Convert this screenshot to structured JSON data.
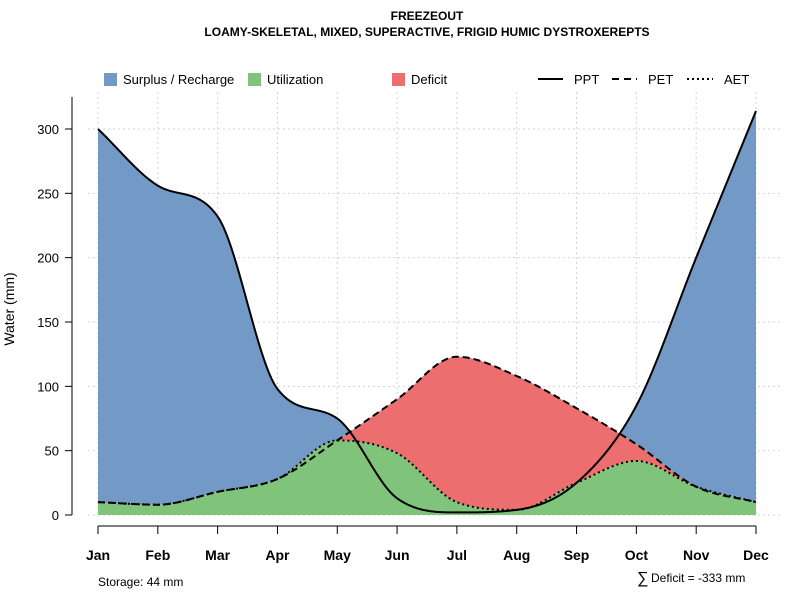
{
  "title": "FREEZEOUT",
  "subtitle": "LOAMY-SKELETAL, MIXED, SUPERACTIVE, FRIGID HUMIC DYSTROXEREPTS",
  "colors": {
    "surplus": "#7399C6",
    "utilization": "#80C47C",
    "deficit": "#EC6E6E",
    "grid": "#d3d3d3",
    "line": "#000000"
  },
  "legend": {
    "surplus": "Surplus / Recharge",
    "utilization": "Utilization",
    "deficit": "Deficit",
    "ppt": "PPT",
    "pet": "PET",
    "aet": "AET"
  },
  "footer": {
    "storage": "Storage: 44 mm",
    "deficit_symbol": "∑",
    "deficit": "Deficit = -333 mm"
  },
  "chart_data": {
    "type": "area",
    "title": "FREEZEOUT",
    "subtitle": "LOAMY-SKELETAL, MIXED, SUPERACTIVE, FRIGID HUMIC DYSTROXEREPTS",
    "xlabel": "",
    "ylabel": "Water (mm)",
    "categories": [
      "Jan",
      "Feb",
      "Mar",
      "Apr",
      "May",
      "Jun",
      "Jul",
      "Aug",
      "Sep",
      "Oct",
      "Nov",
      "Dec"
    ],
    "ylim": [
      0,
      325
    ],
    "yticks": [
      0,
      50,
      100,
      150,
      200,
      250,
      300
    ],
    "grid": true,
    "legend_position": "top",
    "series": [
      {
        "name": "PPT",
        "style": "solid",
        "values": [
          300,
          256,
          232,
          98,
          75,
          13,
          2,
          4,
          25,
          85,
          200,
          314
        ]
      },
      {
        "name": "PET",
        "style": "dashed",
        "values": [
          10,
          8,
          18,
          28,
          58,
          90,
          123,
          108,
          83,
          55,
          22,
          10
        ]
      },
      {
        "name": "AET",
        "style": "dotted",
        "values": [
          10,
          8,
          18,
          28,
          58,
          48,
          10,
          4,
          25,
          42,
          22,
          10
        ]
      }
    ]
  }
}
